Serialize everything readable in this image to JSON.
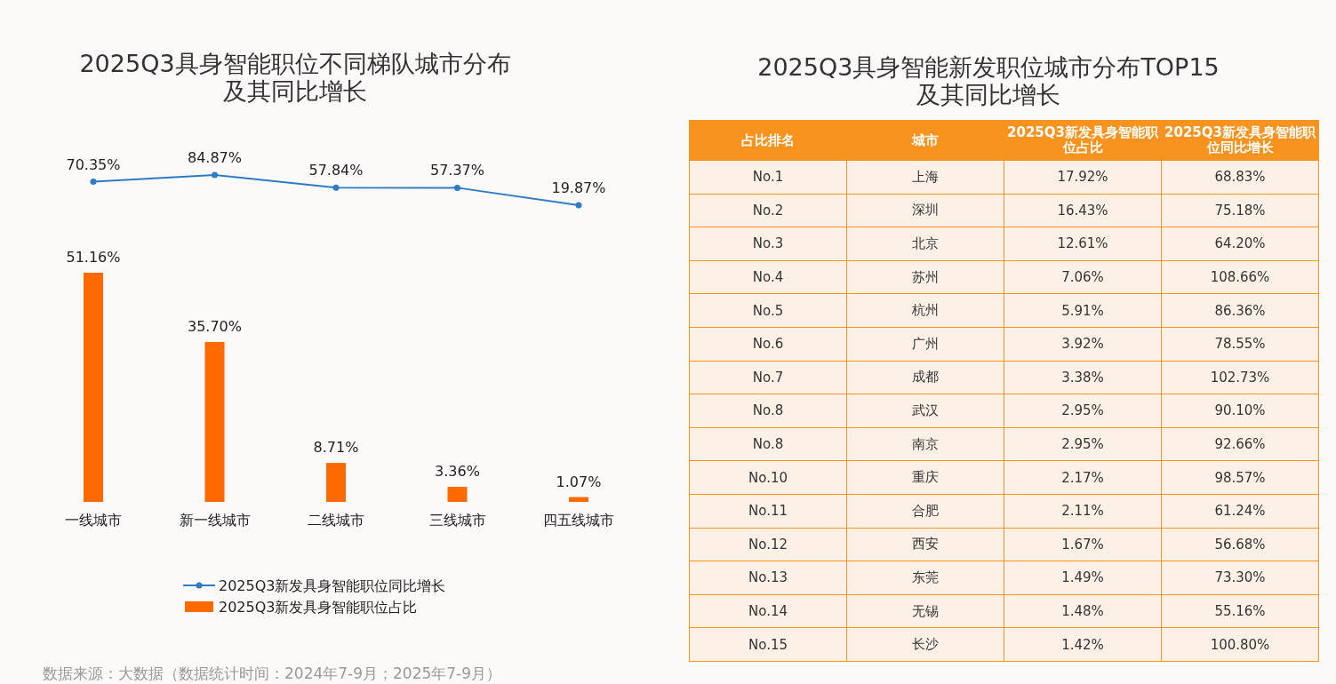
{
  "chart_data": [
    {
      "type": "line",
      "title": "2025Q3具身智能职位不同梯队城市分布及其同比增长",
      "categories": [
        null,
        null,
        null,
        null,
        null
      ],
      "series": [
        {
          "name": "2025Q3新发具身智能职位同比增长",
          "color": "#2f7cc0",
          "values": [
            70.35,
            84.87,
            57.84,
            57.37,
            19.87
          ],
          "value_labels": [
            "70.35%",
            "84.87%",
            "57.84%",
            "57.37%",
            "19.87%"
          ]
        }
      ],
      "marker": "circle",
      "legend": "bottom"
    },
    {
      "type": "bar",
      "categories": [
        "一线城市",
        "新一线城市",
        "二线城市",
        "三线城市",
        "四五线城市"
      ],
      "series": [
        {
          "name": "2025Q3新发具身智能职位占比",
          "color": "#ff6a00",
          "values": [
            51.16,
            35.7,
            8.71,
            3.36,
            1.07
          ],
          "value_labels": [
            "51.16%",
            "35.70%",
            "8.71%",
            "3.36%",
            "1.07%"
          ]
        }
      ],
      "legend": "bottom",
      "annotations": [
        "数据来源：大数据（数据统计时间：2024年7-9月；2025年7-9月）"
      ]
    },
    {
      "type": "other",
      "title": "2025Q3具身智能新发职位城市分布TOP15及其同比增长",
      "categories": [
        "占比排名",
        "城市",
        "2025Q3新发具身智能职位占比",
        "2025Q3新发具身智能职位同比增长"
      ],
      "y_categories": [
        "No.1",
        "No.2",
        "No.3",
        "No.4",
        "No.5",
        "No.6",
        "No.7",
        "No.8",
        "No.8",
        "No.10",
        "No.11",
        "No.12",
        "No.13",
        "No.14",
        "No.15"
      ],
      "y2_categories": [
        "上海",
        "深圳",
        "北京",
        "苏州",
        "杭州",
        "广州",
        "成都",
        "武汉",
        "南京",
        "重庆",
        "合肥",
        "西安",
        "东莞",
        "无锡",
        "长沙"
      ],
      "cell_labels": [
        [
          "17.92%",
          "68.83%"
        ],
        [
          "16.43%",
          "75.18%"
        ],
        [
          "12.61%",
          "64.20%"
        ],
        [
          "7.06%",
          "108.66%"
        ],
        [
          "5.91%",
          "86.36%"
        ],
        [
          "3.92%",
          "78.55%"
        ],
        [
          "3.38%",
          "102.73%"
        ],
        [
          "2.95%",
          "90.10%"
        ],
        [
          "2.95%",
          "92.66%"
        ],
        [
          "2.17%",
          "98.57%"
        ],
        [
          "2.11%",
          "61.24%"
        ],
        [
          "1.67%",
          "56.68%"
        ],
        [
          "1.49%",
          "73.30%"
        ],
        [
          "1.48%",
          "55.16%"
        ],
        [
          "1.42%",
          "100.80%"
        ]
      ]
    }
  ]
}
